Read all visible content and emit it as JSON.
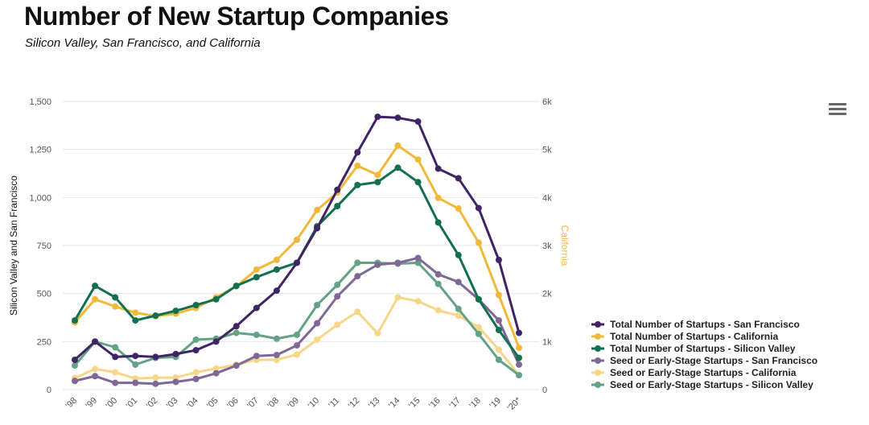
{
  "chart_data": {
    "type": "line",
    "title": "Number of New Startup Companies",
    "subtitle": "Silicon Valley, San Francisco, and California",
    "categories": [
      "'98",
      "'99",
      "'00",
      "'01",
      "'02",
      "'03",
      "'04",
      "'05",
      "'06",
      "'07",
      "'08",
      "'09",
      "'10",
      "'11",
      "'12",
      "'13",
      "'14",
      "'15",
      "'16",
      "'17",
      "'18",
      "'19",
      "'20*"
    ],
    "y_left": {
      "label": "Silicon Valley and San Francisco",
      "range": [
        0,
        1500
      ],
      "ticks": [
        0,
        250,
        500,
        750,
        1000,
        1250,
        1500
      ],
      "tick_labels": [
        "0",
        "250",
        "500",
        "750",
        "1,000",
        "1,250",
        "1,500"
      ]
    },
    "y_right": {
      "label": "California",
      "range": [
        0,
        6000
      ],
      "ticks": [
        0,
        1000,
        2000,
        3000,
        4000,
        5000,
        6000
      ],
      "tick_labels": [
        "0",
        "1k",
        "2k",
        "3k",
        "4k",
        "5k",
        "6k"
      ],
      "color": "#f0b93a"
    },
    "grid": true,
    "legend_position": "right",
    "series": [
      {
        "name": "Total Number of Startups - San Francisco",
        "axis": "left",
        "color": "#3f2566",
        "values": [
          155,
          250,
          170,
          175,
          170,
          185,
          205,
          250,
          330,
          425,
          515,
          660,
          840,
          1040,
          1235,
          1420,
          1415,
          1395,
          1150,
          1100,
          945,
          675,
          295
        ]
      },
      {
        "name": "Total Number of Startups - California",
        "axis": "right",
        "color": "#f0b93a",
        "values": [
          1400,
          1880,
          1730,
          1600,
          1530,
          1580,
          1700,
          1920,
          2150,
          2500,
          2700,
          3120,
          3740,
          4100,
          4660,
          4470,
          5080,
          4790,
          3990,
          3770,
          3060,
          1970,
          870
        ]
      },
      {
        "name": "Total Number of Startups - Silicon Valley",
        "axis": "left",
        "color": "#12704f",
        "values": [
          360,
          540,
          480,
          360,
          385,
          410,
          440,
          470,
          540,
          585,
          625,
          660,
          850,
          955,
          1065,
          1080,
          1155,
          1080,
          870,
          700,
          470,
          310,
          165
        ]
      },
      {
        "name": "Seed or Early-Stage Startups - San Francisco",
        "axis": "left",
        "color": "#7f6896",
        "values": [
          45,
          70,
          35,
          35,
          30,
          40,
          55,
          85,
          125,
          175,
          180,
          230,
          345,
          485,
          590,
          650,
          660,
          685,
          600,
          560,
          470,
          360,
          130
        ]
      },
      {
        "name": "Seed or Early-Stage Startups - California",
        "axis": "right",
        "color": "#f7d68a",
        "values": [
          240,
          430,
          360,
          230,
          250,
          250,
          360,
          440,
          520,
          620,
          620,
          730,
          1040,
          1350,
          1620,
          1170,
          1920,
          1840,
          1650,
          1540,
          1300,
          830,
          300
        ]
      },
      {
        "name": "Seed or Early-Stage Startups - Silicon Valley",
        "axis": "left",
        "color": "#64a286",
        "values": [
          125,
          250,
          220,
          130,
          165,
          170,
          260,
          265,
          295,
          285,
          265,
          285,
          440,
          545,
          660,
          660,
          655,
          660,
          550,
          420,
          290,
          155,
          75
        ]
      }
    ]
  },
  "menu": {
    "icon": "hamburger-menu-icon"
  }
}
